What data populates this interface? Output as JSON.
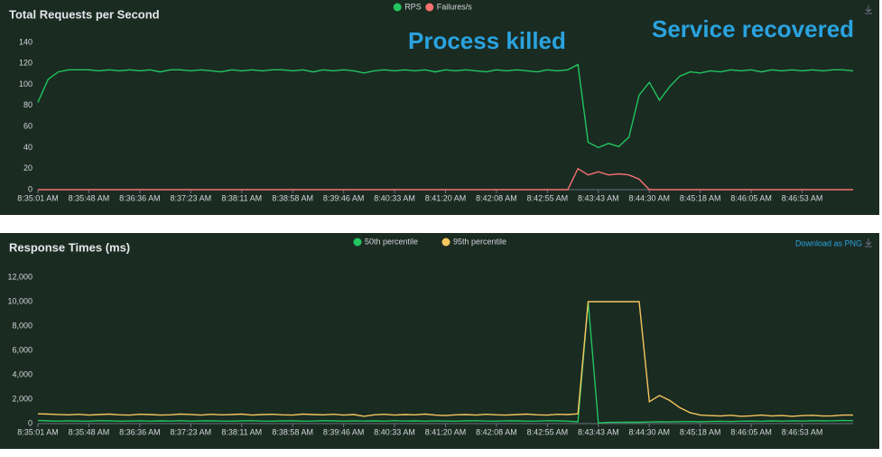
{
  "chart_data": [
    {
      "type": "line",
      "title": "Total Requests per Second",
      "annotations": [
        "Process killed",
        "Service recovered"
      ],
      "categories": [
        "8:35:01 AM",
        null,
        null,
        null,
        null,
        "8:35:48 AM",
        null,
        null,
        null,
        null,
        "8:36:36 AM",
        null,
        null,
        null,
        null,
        "8:37:23 AM",
        null,
        null,
        null,
        null,
        "8:38:11 AM",
        null,
        null,
        null,
        null,
        "8:38:58 AM",
        null,
        null,
        null,
        null,
        "8:39:46 AM",
        null,
        null,
        null,
        null,
        "8:40:33 AM",
        null,
        null,
        null,
        null,
        "8:41:20 AM",
        null,
        null,
        null,
        null,
        "8:42:08 AM",
        null,
        null,
        null,
        null,
        "8:42:55 AM",
        null,
        null,
        null,
        null,
        "8:43:43 AM",
        null,
        null,
        null,
        null,
        "8:44:30 AM",
        null,
        null,
        null,
        null,
        "8:45:18 AM",
        null,
        null,
        null,
        null,
        "8:46:05 AM",
        null,
        null,
        null,
        null,
        "8:46:53 AM",
        null,
        null,
        null,
        null,
        null
      ],
      "series": [
        {
          "name": "RPS",
          "color": "#22c55e",
          "values": [
            83,
            105,
            112,
            114,
            114,
            114,
            113,
            114,
            113,
            114,
            113,
            114,
            112,
            114,
            114,
            113,
            114,
            113,
            112,
            114,
            113,
            114,
            113,
            114,
            114,
            113,
            114,
            112,
            114,
            113,
            114,
            113,
            111,
            113,
            114,
            113,
            114,
            113,
            114,
            112,
            114,
            113,
            114,
            113,
            112,
            114,
            113,
            114,
            113,
            112,
            114,
            113,
            114,
            119,
            45,
            40,
            44,
            41,
            50,
            90,
            102,
            85,
            98,
            108,
            112,
            111,
            113,
            112,
            114,
            113,
            114,
            112,
            114,
            113,
            114,
            113,
            114,
            113,
            114,
            114,
            113
          ]
        },
        {
          "name": "Failures/s",
          "color": "#f87171",
          "values": [
            0,
            0,
            0,
            0,
            0,
            0,
            0,
            0,
            0,
            0,
            0,
            0,
            0,
            0,
            0,
            0,
            0,
            0,
            0,
            0,
            0,
            0,
            0,
            0,
            0,
            0,
            0,
            0,
            0,
            0,
            0,
            0,
            0,
            0,
            0,
            0,
            0,
            0,
            0,
            0,
            0,
            0,
            0,
            0,
            0,
            0,
            0,
            0,
            0,
            0,
            0,
            0,
            0,
            20,
            14,
            17,
            14,
            15,
            14,
            10,
            0,
            0,
            0,
            0,
            0,
            0,
            0,
            0,
            0,
            0,
            0,
            0,
            0,
            0,
            0,
            0,
            0,
            0,
            0,
            0,
            0
          ]
        }
      ],
      "ylim": [
        0,
        140
      ],
      "yticks": [
        0,
        20,
        40,
        60,
        80,
        100,
        120,
        140
      ]
    },
    {
      "type": "line",
      "title": "Response Times (ms)",
      "download_label": "Download as PNG",
      "categories": [
        "8:35:01 AM",
        null,
        null,
        null,
        null,
        "8:35:48 AM",
        null,
        null,
        null,
        null,
        "8:36:36 AM",
        null,
        null,
        null,
        null,
        "8:37:23 AM",
        null,
        null,
        null,
        null,
        "8:38:11 AM",
        null,
        null,
        null,
        null,
        "8:38:58 AM",
        null,
        null,
        null,
        null,
        "8:39:46 AM",
        null,
        null,
        null,
        null,
        "8:40:33 AM",
        null,
        null,
        null,
        null,
        "8:41:20 AM",
        null,
        null,
        null,
        null,
        "8:42:08 AM",
        null,
        null,
        null,
        null,
        "8:42:55 AM",
        null,
        null,
        null,
        null,
        "8:43:43 AM",
        null,
        null,
        null,
        null,
        "8:44:30 AM",
        null,
        null,
        null,
        null,
        "8:45:18 AM",
        null,
        null,
        null,
        null,
        "8:46:05 AM",
        null,
        null,
        null,
        null,
        "8:46:53 AM",
        null,
        null,
        null,
        null,
        null
      ],
      "series": [
        {
          "name": "50th percentile",
          "color": "#22c55e",
          "values": [
            250,
            220,
            200,
            230,
            210,
            200,
            240,
            220,
            200,
            210,
            230,
            200,
            220,
            210,
            240,
            200,
            220,
            230,
            210,
            200,
            220,
            240,
            210,
            200,
            230,
            220,
            200,
            210,
            240,
            220,
            200,
            230,
            210,
            220,
            200,
            240,
            210,
            220,
            200,
            230,
            210,
            200,
            220,
            240,
            210,
            200,
            230,
            220,
            200,
            210,
            240,
            220,
            200,
            150,
            10000,
            50,
            100,
            100,
            120,
            110,
            130,
            150,
            140,
            160,
            170,
            150,
            180,
            190,
            170,
            200,
            210,
            190,
            220,
            200,
            230,
            210,
            240,
            220,
            230,
            250,
            240
          ]
        },
        {
          "name": "95th percentile",
          "color": "#f5c55e",
          "values": [
            800,
            780,
            750,
            720,
            760,
            700,
            740,
            780,
            720,
            700,
            760,
            740,
            700,
            720,
            780,
            750,
            700,
            760,
            720,
            740,
            780,
            700,
            740,
            760,
            720,
            700,
            780,
            740,
            720,
            760,
            700,
            740,
            600,
            720,
            760,
            700,
            740,
            720,
            780,
            700,
            660,
            720,
            740,
            700,
            760,
            720,
            700,
            740,
            780,
            720,
            700,
            760,
            740,
            800,
            10000,
            10000,
            10000,
            10000,
            10000,
            10000,
            1800,
            2300,
            1900,
            1300,
            900,
            700,
            650,
            620,
            680,
            600,
            640,
            700,
            620,
            660,
            600,
            650,
            680,
            620,
            640,
            700,
            700
          ]
        }
      ],
      "ylim": [
        0,
        12000
      ],
      "yticks": [
        0,
        {
          "value": 2000,
          "label": "2,000"
        },
        {
          "value": 4000,
          "label": "4,000"
        },
        {
          "value": 6000,
          "label": "6,000"
        },
        {
          "value": 8000,
          "label": "8,000"
        },
        {
          "value": 10000,
          "label": "10,000"
        },
        {
          "value": 12000,
          "label": "12,000"
        }
      ]
    }
  ]
}
